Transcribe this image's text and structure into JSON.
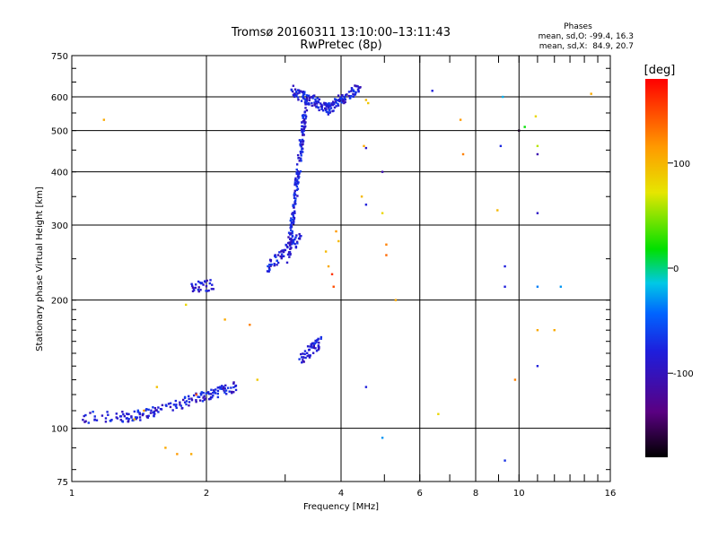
{
  "chart_data": {
    "type": "scatter",
    "title": "Tromsø 20160311 13:10:00–13:11:43",
    "subtitle": "RwPretec (8p)",
    "xlabel": "Frequency [MHz]",
    "ylabel": "Stationary phase Virtual Height [km]",
    "x_scale": "log2",
    "y_scale": "log",
    "xlim": [
      1,
      16
    ],
    "ylim": [
      75,
      750
    ],
    "x_ticks": [
      1,
      2,
      4,
      6,
      8,
      10,
      16
    ],
    "x_tick_labels": [
      "1",
      "2",
      "4",
      "6",
      "8",
      "10",
      "16"
    ],
    "y_ticks": [
      75,
      100,
      200,
      300,
      400,
      500,
      600,
      750
    ],
    "y_tick_labels": [
      "75",
      "100",
      "200",
      "300",
      "400",
      "500",
      "600",
      "750"
    ],
    "grid": true,
    "phases_box": {
      "title": "Phases",
      "line1": "mean, sd,O: -99.4, 16.3",
      "line2": "mean, sd,X:  84.9, 20.7"
    },
    "colorbar": {
      "label": "[deg]",
      "range": [
        -180,
        180
      ],
      "ticks": [
        100,
        0,
        -100
      ],
      "tick_labels": [
        "100",
        "0",
        "-100"
      ],
      "colormap": "rainbow (black→purple→blue→cyan→green→yellow→orange→red)"
    },
    "series": [
      {
        "kind": "cluster-trace",
        "description_of_clusters": "O-mode traces (phase ≈ -100 deg, blue)",
        "clusters": [
          {
            "x_range": [
              1.05,
              1.45
            ],
            "y_from": 106,
            "y_to": 107,
            "phase": -100,
            "n": 60
          },
          {
            "x_range": [
              1.45,
              2.35
            ],
            "y_from": 108,
            "y_to": 125,
            "phase": -100,
            "n": 120
          },
          {
            "x_range": [
              1.85,
              2.08
            ],
            "y_from": 215,
            "y_to": 217,
            "phase": -105,
            "n": 30
          },
          {
            "x_range": [
              2.75,
              3.25
            ],
            "y_from": 240,
            "y_to": 280,
            "phase": -100,
            "n": 70
          },
          {
            "x_range": [
              3.05,
              3.35
            ],
            "y_from": 250,
            "y_to": 600,
            "phase": -100,
            "n": 180
          },
          {
            "x_range": [
              3.1,
              3.8
            ],
            "y_from": 620,
            "y_to": 560,
            "phase": -100,
            "n": 90
          },
          {
            "x_range": [
              3.7,
              4.4
            ],
            "y_from": 560,
            "y_to": 630,
            "phase": -100,
            "n": 80
          },
          {
            "x_range": [
              3.25,
              3.6
            ],
            "y_from": 145,
            "y_to": 160,
            "phase": -100,
            "n": 50
          }
        ]
      },
      {
        "kind": "points",
        "description_of_points": "scattered X-mode and outlier echoes",
        "points": [
          [
            1.18,
            530,
            110
          ],
          [
            1.38,
            105,
            100
          ],
          [
            1.45,
            110,
            120
          ],
          [
            1.55,
            125,
            95
          ],
          [
            1.62,
            90,
            110
          ],
          [
            1.72,
            87,
            120
          ],
          [
            1.8,
            195,
            80
          ],
          [
            1.85,
            87,
            110
          ],
          [
            1.9,
            120,
            150
          ],
          [
            2.2,
            180,
            110
          ],
          [
            2.5,
            175,
            130
          ],
          [
            2.6,
            130,
            90
          ],
          [
            3.7,
            260,
            100
          ],
          [
            3.75,
            240,
            110
          ],
          [
            3.9,
            290,
            120
          ],
          [
            3.95,
            275,
            100
          ],
          [
            3.85,
            215,
            150
          ],
          [
            3.82,
            230,
            160
          ],
          [
            4.55,
            590,
            100
          ],
          [
            4.6,
            580,
            90
          ],
          [
            4.5,
            460,
            110
          ],
          [
            4.45,
            350,
            100
          ],
          [
            4.95,
            320,
            80
          ],
          [
            5.05,
            270,
            130
          ],
          [
            5.05,
            255,
            140
          ],
          [
            5.3,
            200,
            110
          ],
          [
            7.4,
            530,
            120
          ],
          [
            7.5,
            440,
            130
          ],
          [
            8.95,
            325,
            100
          ],
          [
            10.3,
            510,
            20
          ],
          [
            10.9,
            540,
            80
          ],
          [
            11.0,
            460,
            60
          ],
          [
            9.8,
            130,
            130
          ],
          [
            11.0,
            170,
            110
          ],
          [
            12.0,
            170,
            110
          ],
          [
            14.5,
            610,
            110
          ],
          [
            6.6,
            108,
            80
          ]
        ]
      },
      {
        "kind": "points",
        "description_of_points": "isolated O-mode outliers",
        "points": [
          [
            6.4,
            620,
            -100
          ],
          [
            9.1,
            460,
            -95
          ],
          [
            9.2,
            600,
            -30
          ],
          [
            9.3,
            240,
            -100
          ],
          [
            9.3,
            215,
            -100
          ],
          [
            9.3,
            84,
            -90
          ],
          [
            10.0,
            500,
            -170
          ],
          [
            11.0,
            440,
            -120
          ],
          [
            11.0,
            320,
            -110
          ],
          [
            11.0,
            140,
            -100
          ],
          [
            11.0,
            215,
            -50
          ],
          [
            12.4,
            215,
            -40
          ],
          [
            4.55,
            455,
            -110
          ],
          [
            4.95,
            400,
            -120
          ],
          [
            4.55,
            335,
            -100
          ],
          [
            4.55,
            125,
            -100
          ],
          [
            4.95,
            95,
            -40
          ]
        ]
      }
    ]
  }
}
